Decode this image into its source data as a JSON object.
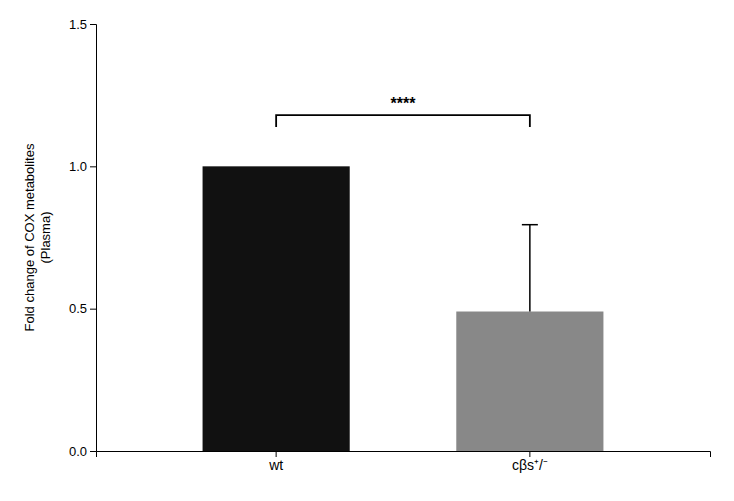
{
  "chart_data": {
    "type": "bar",
    "categories": [
      "wt",
      "cβs⁺/⁻"
    ],
    "values": [
      1.0,
      0.49
    ],
    "errors": [
      null,
      0.305
    ],
    "colors": [
      "#111111",
      "#888888"
    ],
    "y_label": "Fold change of COX metabolites\n(Plasma)",
    "ylim": [
      0,
      1.5
    ],
    "yticks": [
      {
        "value": 0.0,
        "label": "0.0"
      },
      {
        "value": 0.5,
        "label": "0.5"
      },
      {
        "value": 1.0,
        "label": "1.0"
      },
      {
        "value": 1.5,
        "label": "1.5"
      }
    ],
    "grid": false,
    "annotations": [
      {
        "text": "****",
        "from": 0,
        "to": 1,
        "y": 1.18,
        "text_y": 1.2
      }
    ]
  }
}
